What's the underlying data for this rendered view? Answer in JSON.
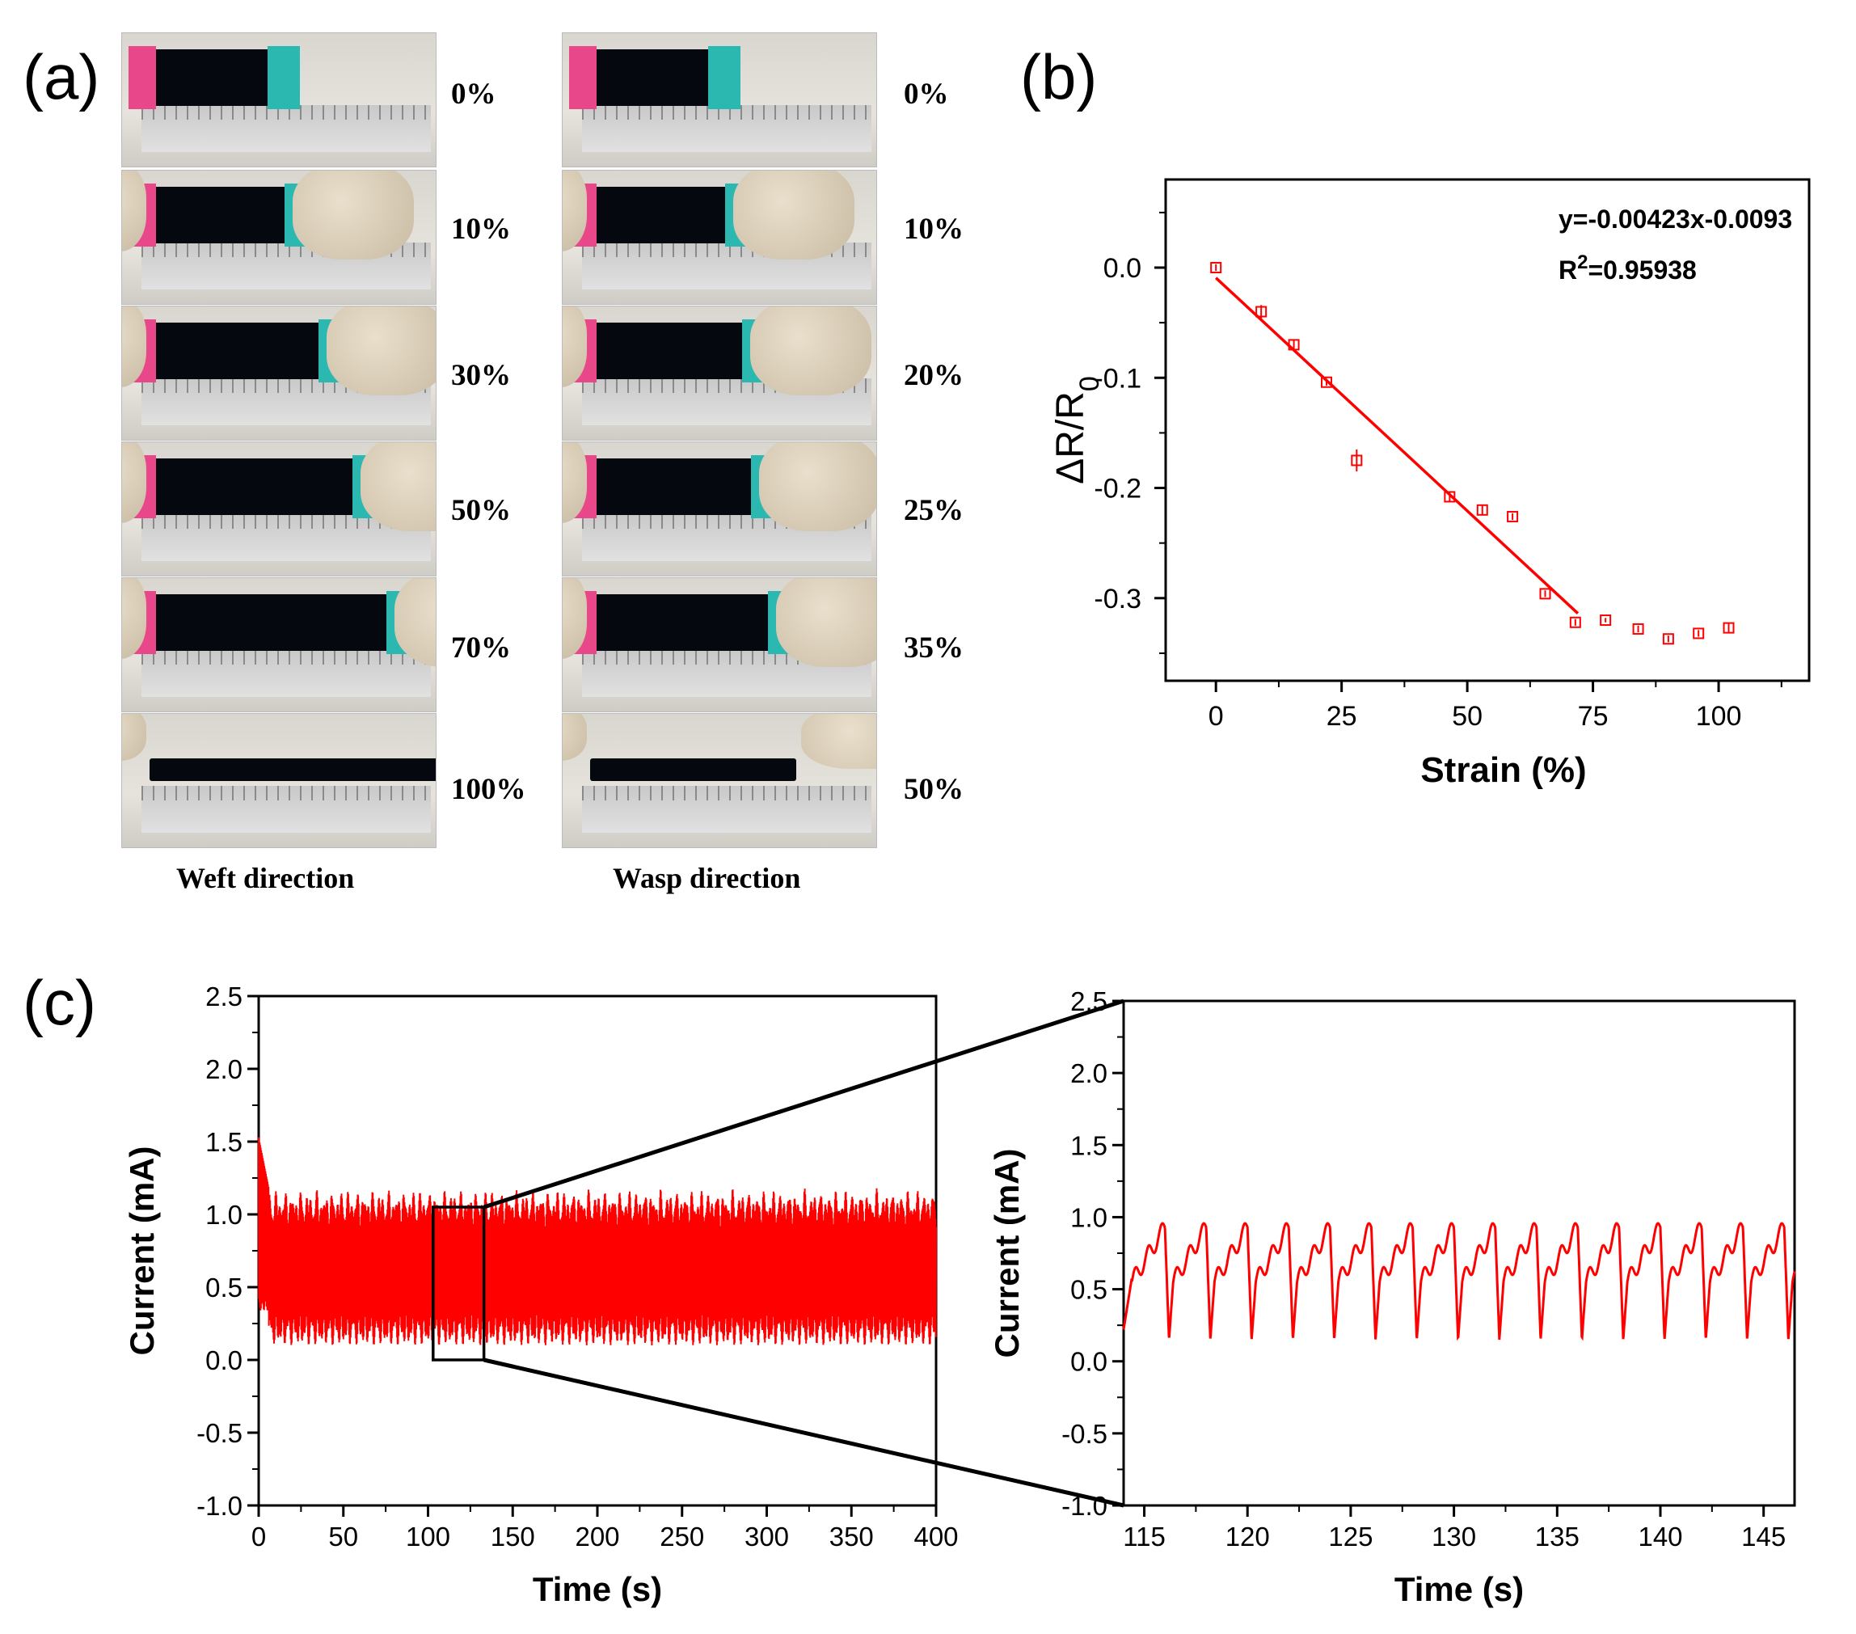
{
  "panel_a": {
    "letter": "(a)",
    "weft": {
      "label": "Weft direction",
      "strains": [
        "0%",
        "10%",
        "30%",
        "50%",
        "70%",
        "100%"
      ],
      "stretch": [
        0,
        10,
        30,
        50,
        70,
        100
      ]
    },
    "warp": {
      "label": "Wasp direction",
      "strains": [
        "0%",
        "10%",
        "20%",
        "25%",
        "35%",
        "50%"
      ],
      "stretch": [
        0,
        10,
        20,
        25,
        35,
        50
      ]
    }
  },
  "chart_data": [
    {
      "id": "b",
      "letter": "(b)",
      "type": "scatter",
      "xlabel": "Strain (%)",
      "ylabel": "ΔR/R",
      "ylabel_sub": "0",
      "xlim": [
        -10,
        118
      ],
      "ylim": [
        -0.375,
        0.08
      ],
      "xticks": [
        0,
        25,
        50,
        75,
        100
      ],
      "yticks": [
        0.0,
        -0.1,
        -0.2,
        -0.3
      ],
      "ytick_labels": [
        "0.0",
        "-0.1",
        "-0.2",
        "-0.3"
      ],
      "points": [
        {
          "x": 0,
          "y": 0.0,
          "err": 0.003
        },
        {
          "x": 9,
          "y": -0.04,
          "err": 0.006
        },
        {
          "x": 15.5,
          "y": -0.07,
          "err": 0.004
        },
        {
          "x": 22,
          "y": -0.104,
          "err": 0.003
        },
        {
          "x": 28,
          "y": -0.175,
          "err": 0.01
        },
        {
          "x": 46.5,
          "y": -0.208,
          "err": 0.004
        },
        {
          "x": 53,
          "y": -0.22,
          "err": 0.005
        },
        {
          "x": 59,
          "y": -0.226,
          "err": 0.003
        },
        {
          "x": 65.5,
          "y": -0.296,
          "err": 0.003
        },
        {
          "x": 71.5,
          "y": -0.322,
          "err": 0.003
        },
        {
          "x": 77.5,
          "y": -0.32,
          "err": 0.002
        },
        {
          "x": 84,
          "y": -0.328,
          "err": 0.003
        },
        {
          "x": 90,
          "y": -0.337,
          "err": 0.003
        },
        {
          "x": 96,
          "y": -0.332,
          "err": 0.003
        },
        {
          "x": 102,
          "y": -0.327,
          "err": 0.004
        }
      ],
      "fit": {
        "slope": -0.00423,
        "intercept": -0.0093,
        "x_range": [
          0,
          72
        ]
      },
      "equation": "y=-0.00423x-0.0093",
      "r2_prefix": "R",
      "r2_sup": "2",
      "r2_value": "=0.95938",
      "color": "#ff0000"
    },
    {
      "id": "c-left",
      "letter": "(c)",
      "type": "line",
      "xlabel": "Time (s)",
      "ylabel": "Current (mA)",
      "xlim": [
        0,
        400
      ],
      "ylim": [
        -1.0,
        2.5
      ],
      "xticks": [
        0,
        50,
        100,
        150,
        200,
        250,
        300,
        350,
        400
      ],
      "yticks": [
        2.5,
        2.0,
        1.5,
        1.0,
        0.5,
        0.0,
        -0.5,
        -1.0
      ],
      "ytick_labels": [
        "2.5",
        "2.0",
        "1.5",
        "1.0",
        "0.5",
        "0.0",
        "-0.5",
        "-1.0"
      ],
      "signal": {
        "period_s": 2.0,
        "min_mA": 0.12,
        "max_mA": 0.95,
        "band_low": 0.05,
        "band_high": 1.15,
        "start_peak": 1.53
      },
      "zoom_box": {
        "x": [
          103,
          133
        ],
        "y": [
          0.0,
          1.05
        ]
      },
      "color": "#ff0000"
    },
    {
      "id": "c-right",
      "type": "line",
      "xlabel": "Time (s)",
      "ylabel": "Current (mA)",
      "xlim": [
        114,
        146.5
      ],
      "ylim": [
        -1.0,
        2.5
      ],
      "xticks": [
        115,
        120,
        125,
        130,
        135,
        140,
        145
      ],
      "yticks": [
        2.5,
        2.0,
        1.5,
        1.0,
        0.5,
        0.0,
        -0.5,
        -1.0
      ],
      "ytick_labels": [
        "2.5",
        "2.0",
        "1.5",
        "1.0",
        "0.5",
        "0.0",
        "-0.5",
        "-1.0"
      ],
      "signal": {
        "period_s": 2.0,
        "min_mA": 0.15,
        "max_mA": 0.93,
        "first_peak_s": 116
      },
      "color": "#ff0000"
    }
  ]
}
